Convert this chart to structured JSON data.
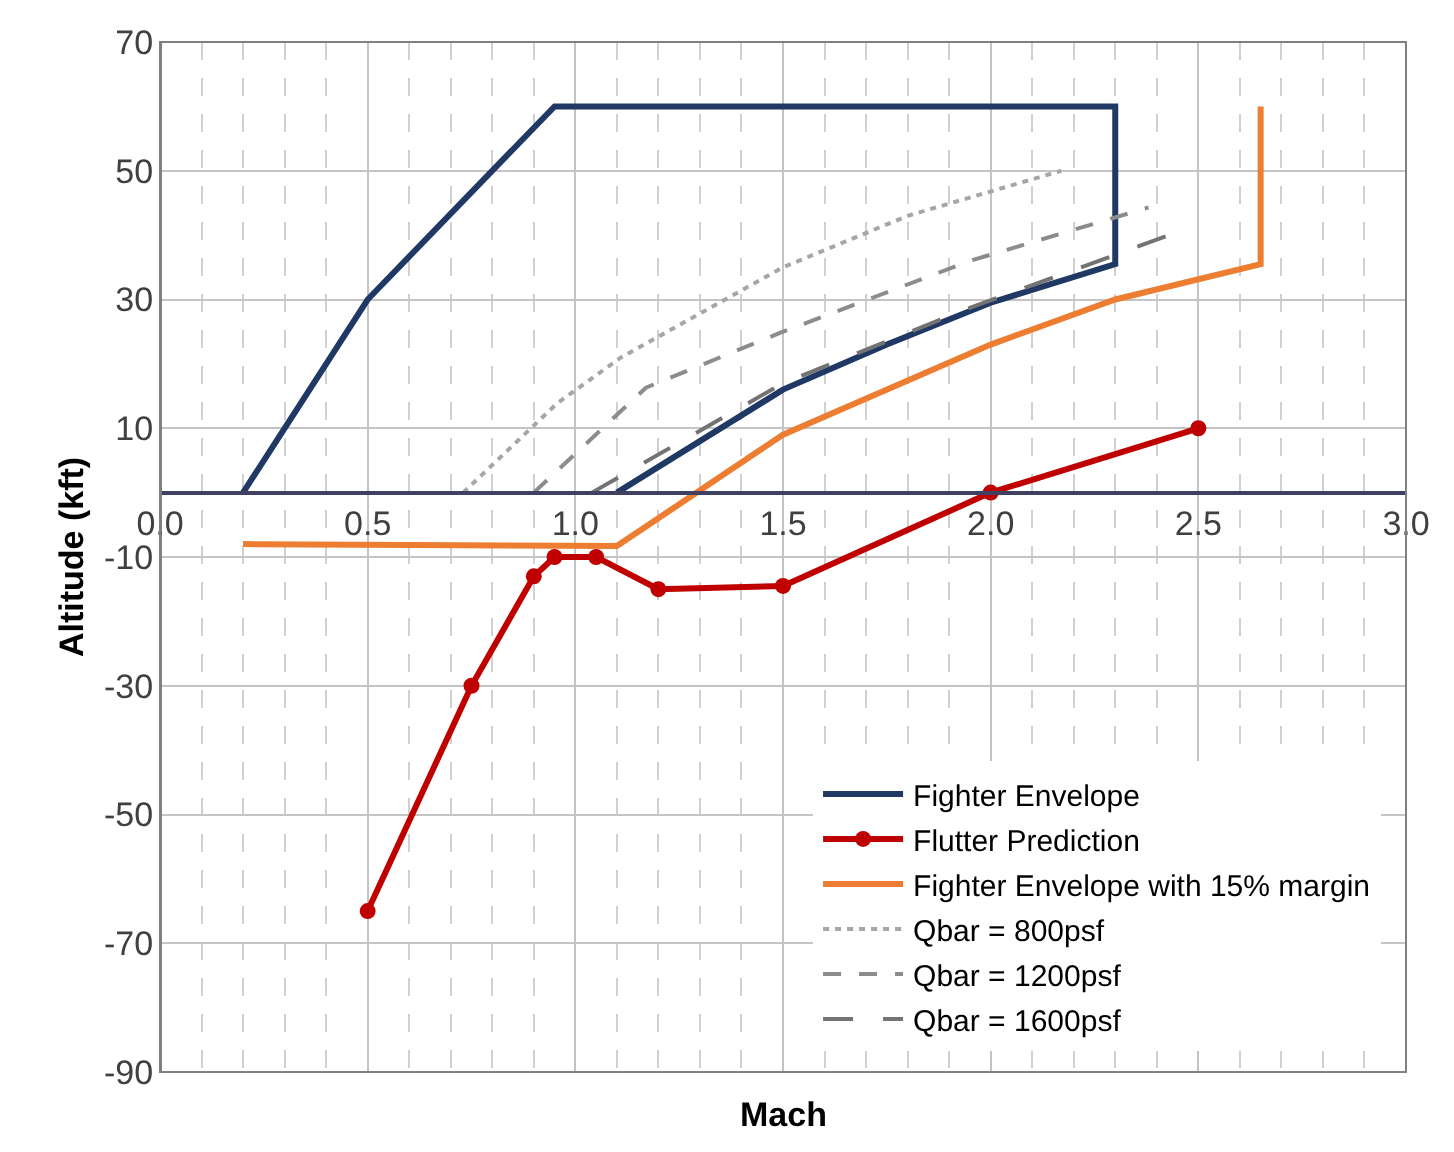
{
  "chart_data": {
    "type": "line",
    "xlabel": "Mach",
    "ylabel": "Altitude (kft)",
    "xlim": [
      0,
      3.0
    ],
    "xticks": [
      {
        "value": 0,
        "label": "0.0"
      },
      0.5,
      {
        "value": 1,
        "label": "1.0"
      },
      1.5,
      {
        "value": 2,
        "label": "2.0"
      },
      2.5,
      {
        "value": 3,
        "label": "3.0"
      }
    ],
    "ylim": [
      -90,
      70
    ],
    "yticks": [
      -90,
      -70,
      -50,
      -30,
      -10,
      10,
      30,
      50,
      70
    ],
    "grid": true,
    "legend": "bottom right",
    "line_style": "solid",
    "marker": "none",
    "series": [
      {
        "name": "Fighter Envelope",
        "color": "#1f3864",
        "x": [
          0.2,
          0.5,
          0.95,
          2.3,
          2.3,
          2.0,
          1.75,
          1.5,
          1.1
        ],
        "values": [
          0,
          30,
          60,
          60,
          35.5,
          29.5,
          23,
          16,
          0
        ]
      },
      {
        "name": "Flutter Prediction",
        "color": "#c00000",
        "marker": "circle",
        "x": [
          0.5,
          0.75,
          0.9,
          0.95,
          1.05,
          1.2,
          1.5,
          2.0,
          2.5
        ],
        "values": [
          -65,
          -30,
          -13,
          -10,
          -10,
          -15,
          -14.5,
          0,
          10
        ]
      },
      {
        "name": "Fighter Envelope with 15% margin",
        "color": "#ed7d31",
        "x": [
          0.2,
          1.1,
          1.5,
          2.0,
          2.3,
          2.65,
          2.65
        ],
        "values": [
          -8,
          -8.3,
          9,
          23,
          30,
          35.5,
          60
        ]
      },
      {
        "name": "Qbar = 800psf",
        "color": "#a6a6a6",
        "line_style": "dotted",
        "x": [
          0.73,
          0.955,
          1.11,
          1.5,
          1.8,
          2.17
        ],
        "values": [
          0,
          13.8,
          21,
          35,
          43,
          50
        ]
      },
      {
        "name": "Qbar = 1200psf",
        "color": "#8c8c8c",
        "line_style": "dashed",
        "x": [
          0.9,
          1.17,
          1.5,
          1.95,
          2.38
        ],
        "values": [
          0,
          16.3,
          25,
          36,
          44.3
        ]
      },
      {
        "name": "Qbar = 1600psf",
        "color": "#737373",
        "line_style": "longdash",
        "x": [
          1.04,
          1.5,
          1.95,
          2.43
        ],
        "values": [
          0,
          17,
          28.7,
          40
        ]
      }
    ]
  }
}
